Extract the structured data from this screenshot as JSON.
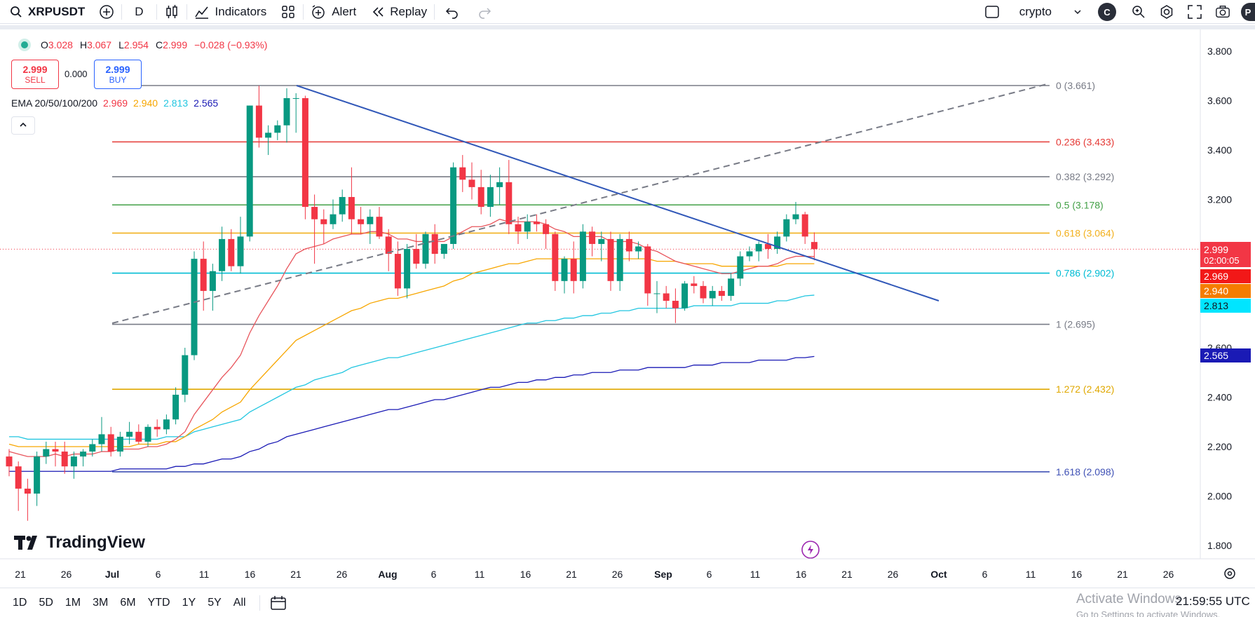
{
  "toolbar": {
    "symbol": "XRPUSDT",
    "interval": "D",
    "indicators_label": "Indicators",
    "alert_label": "Alert",
    "replay_label": "Replay",
    "layout_name": "crypto",
    "avatar_letter": "C",
    "edge_letter": "P"
  },
  "legend": {
    "o_label": "O",
    "o_value": "3.028",
    "h_label": "H",
    "h_value": "3.067",
    "l_label": "L",
    "l_value": "2.954",
    "c_label": "C",
    "c_value": "2.999",
    "change": "−0.028 (−0.93%)"
  },
  "trade": {
    "sell_price": "2.999",
    "sell_label": "SELL",
    "spread": "0.000",
    "buy_price": "2.999",
    "buy_label": "BUY"
  },
  "ema": {
    "label": "EMA 20/50/100/200",
    "v20": "2.969",
    "v50": "2.940",
    "v100": "2.813",
    "v200": "2.565",
    "c20": "#f23645",
    "c50": "#f7a600",
    "c100": "#22c6e0",
    "c200": "#1a1ab5"
  },
  "watermark": "TradingView",
  "chart_data": {
    "type": "candlestick",
    "y_ticks": [
      "3.800",
      "3.600",
      "3.400",
      "3.200",
      "2.600",
      "2.400",
      "2.200",
      "2.000",
      "1.800"
    ],
    "x_ticks": [
      "21",
      "26",
      "Jul",
      "6",
      "11",
      "16",
      "21",
      "26",
      "Aug",
      "6",
      "11",
      "16",
      "21",
      "26",
      "Sep",
      "6",
      "11",
      "16",
      "21",
      "26",
      "Oct",
      "6",
      "11",
      "16",
      "21",
      "26"
    ],
    "fib_levels": [
      {
        "label": "0 (3.661)",
        "value": 3.661,
        "color": "#787b86"
      },
      {
        "label": "0.236 (3.433)",
        "value": 3.433,
        "color": "#e53935"
      },
      {
        "label": "0.382 (3.292)",
        "value": 3.292,
        "color": "#787b86"
      },
      {
        "label": "0.5 (3.178)",
        "value": 3.178,
        "color": "#43a047"
      },
      {
        "label": "0.618 (3.064)",
        "value": 3.064,
        "color": "#f2b01e"
      },
      {
        "label": "0.786 (2.902)",
        "value": 2.902,
        "color": "#00bcd4"
      },
      {
        "label": "1 (2.695)",
        "value": 2.695,
        "color": "#787b86"
      },
      {
        "label": "1.272 (2.432)",
        "value": 2.432,
        "color": "#e0a800"
      },
      {
        "label": "1.618 (2.098)",
        "value": 2.098,
        "color": "#3f51b5"
      }
    ],
    "candles": [
      {
        "o": 2.16,
        "h": 2.19,
        "l": 2.08,
        "c": 2.12
      },
      {
        "o": 2.12,
        "h": 2.14,
        "l": 1.94,
        "c": 2.03
      },
      {
        "o": 2.03,
        "h": 2.07,
        "l": 1.9,
        "c": 2.01
      },
      {
        "o": 2.01,
        "h": 2.18,
        "l": 1.96,
        "c": 2.16
      },
      {
        "o": 2.16,
        "h": 2.22,
        "l": 2.13,
        "c": 2.19
      },
      {
        "o": 2.19,
        "h": 2.22,
        "l": 2.12,
        "c": 2.18
      },
      {
        "o": 2.18,
        "h": 2.22,
        "l": 2.09,
        "c": 2.12
      },
      {
        "o": 2.12,
        "h": 2.18,
        "l": 2.07,
        "c": 2.16
      },
      {
        "o": 2.16,
        "h": 2.19,
        "l": 2.12,
        "c": 2.18
      },
      {
        "o": 2.18,
        "h": 2.23,
        "l": 2.16,
        "c": 2.21
      },
      {
        "o": 2.21,
        "h": 2.32,
        "l": 2.18,
        "c": 2.25
      },
      {
        "o": 2.25,
        "h": 2.28,
        "l": 2.16,
        "c": 2.18
      },
      {
        "o": 2.18,
        "h": 2.26,
        "l": 2.16,
        "c": 2.24
      },
      {
        "o": 2.24,
        "h": 2.3,
        "l": 2.21,
        "c": 2.26
      },
      {
        "o": 2.26,
        "h": 2.29,
        "l": 2.21,
        "c": 2.22
      },
      {
        "o": 2.22,
        "h": 2.29,
        "l": 2.2,
        "c": 2.28
      },
      {
        "o": 2.28,
        "h": 2.31,
        "l": 2.24,
        "c": 2.27
      },
      {
        "o": 2.27,
        "h": 2.33,
        "l": 2.25,
        "c": 2.31
      },
      {
        "o": 2.31,
        "h": 2.44,
        "l": 2.29,
        "c": 2.41
      },
      {
        "o": 2.41,
        "h": 2.6,
        "l": 2.38,
        "c": 2.57
      },
      {
        "o": 2.57,
        "h": 2.99,
        "l": 2.55,
        "c": 2.96
      },
      {
        "o": 2.96,
        "h": 3.03,
        "l": 2.75,
        "c": 2.83
      },
      {
        "o": 2.83,
        "h": 2.94,
        "l": 2.75,
        "c": 2.91
      },
      {
        "o": 2.91,
        "h": 3.09,
        "l": 2.87,
        "c": 3.04
      },
      {
        "o": 3.04,
        "h": 3.08,
        "l": 2.91,
        "c": 2.93
      },
      {
        "o": 2.93,
        "h": 3.13,
        "l": 2.9,
        "c": 3.05
      },
      {
        "o": 3.05,
        "h": 3.58,
        "l": 3.03,
        "c": 3.58
      },
      {
        "o": 3.58,
        "h": 3.66,
        "l": 3.41,
        "c": 3.45
      },
      {
        "o": 3.45,
        "h": 3.5,
        "l": 3.38,
        "c": 3.47
      },
      {
        "o": 3.47,
        "h": 3.52,
        "l": 3.44,
        "c": 3.5
      },
      {
        "o": 3.5,
        "h": 3.65,
        "l": 3.43,
        "c": 3.61
      },
      {
        "o": 3.61,
        "h": 3.63,
        "l": 3.47,
        "c": 3.61
      },
      {
        "o": 3.61,
        "h": 3.62,
        "l": 3.12,
        "c": 3.17
      },
      {
        "o": 3.17,
        "h": 3.22,
        "l": 2.94,
        "c": 3.12
      },
      {
        "o": 3.12,
        "h": 3.16,
        "l": 3.02,
        "c": 3.1
      },
      {
        "o": 3.1,
        "h": 3.2,
        "l": 3.08,
        "c": 3.14
      },
      {
        "o": 3.14,
        "h": 3.24,
        "l": 3.11,
        "c": 3.21
      },
      {
        "o": 3.21,
        "h": 3.33,
        "l": 3.06,
        "c": 3.12
      },
      {
        "o": 3.12,
        "h": 3.17,
        "l": 3.06,
        "c": 3.1
      },
      {
        "o": 3.1,
        "h": 3.16,
        "l": 3.02,
        "c": 3.13
      },
      {
        "o": 3.13,
        "h": 3.17,
        "l": 3.04,
        "c": 3.05
      },
      {
        "o": 3.05,
        "h": 3.08,
        "l": 2.91,
        "c": 2.98
      },
      {
        "o": 2.98,
        "h": 3.03,
        "l": 2.81,
        "c": 2.84
      },
      {
        "o": 2.84,
        "h": 3.02,
        "l": 2.8,
        "c": 3.0
      },
      {
        "o": 3.0,
        "h": 3.06,
        "l": 2.92,
        "c": 2.94
      },
      {
        "o": 2.94,
        "h": 3.07,
        "l": 2.92,
        "c": 3.06
      },
      {
        "o": 3.06,
        "h": 3.1,
        "l": 2.94,
        "c": 2.98
      },
      {
        "o": 2.98,
        "h": 3.02,
        "l": 2.96,
        "c": 3.02
      },
      {
        "o": 3.02,
        "h": 3.35,
        "l": 3.0,
        "c": 3.33
      },
      {
        "o": 3.33,
        "h": 3.38,
        "l": 3.23,
        "c": 3.28
      },
      {
        "o": 3.28,
        "h": 3.35,
        "l": 3.2,
        "c": 3.25
      },
      {
        "o": 3.25,
        "h": 3.32,
        "l": 3.14,
        "c": 3.17
      },
      {
        "o": 3.17,
        "h": 3.3,
        "l": 3.13,
        "c": 3.25
      },
      {
        "o": 3.25,
        "h": 3.33,
        "l": 3.18,
        "c": 3.27
      },
      {
        "o": 3.27,
        "h": 3.36,
        "l": 3.06,
        "c": 3.1
      },
      {
        "o": 3.1,
        "h": 3.13,
        "l": 3.02,
        "c": 3.07
      },
      {
        "o": 3.07,
        "h": 3.14,
        "l": 3.04,
        "c": 3.11
      },
      {
        "o": 3.11,
        "h": 3.14,
        "l": 3.07,
        "c": 3.1
      },
      {
        "o": 3.1,
        "h": 3.12,
        "l": 3.0,
        "c": 3.06
      },
      {
        "o": 3.06,
        "h": 3.07,
        "l": 2.83,
        "c": 2.87
      },
      {
        "o": 2.87,
        "h": 2.97,
        "l": 2.82,
        "c": 2.96
      },
      {
        "o": 2.96,
        "h": 3.03,
        "l": 2.82,
        "c": 2.87
      },
      {
        "o": 2.87,
        "h": 3.1,
        "l": 2.84,
        "c": 3.07
      },
      {
        "o": 3.07,
        "h": 3.09,
        "l": 2.97,
        "c": 3.02
      },
      {
        "o": 3.02,
        "h": 3.07,
        "l": 2.95,
        "c": 3.04
      },
      {
        "o": 3.04,
        "h": 3.07,
        "l": 2.83,
        "c": 2.87
      },
      {
        "o": 2.87,
        "h": 3.06,
        "l": 2.83,
        "c": 3.04
      },
      {
        "o": 3.04,
        "h": 3.07,
        "l": 2.95,
        "c": 2.99
      },
      {
        "o": 2.99,
        "h": 3.03,
        "l": 2.96,
        "c": 3.01
      },
      {
        "o": 3.01,
        "h": 3.02,
        "l": 2.77,
        "c": 2.82
      },
      {
        "o": 2.82,
        "h": 2.87,
        "l": 2.74,
        "c": 2.82
      },
      {
        "o": 2.82,
        "h": 2.85,
        "l": 2.76,
        "c": 2.79
      },
      {
        "o": 2.79,
        "h": 2.84,
        "l": 2.7,
        "c": 2.76
      },
      {
        "o": 2.76,
        "h": 2.87,
        "l": 2.75,
        "c": 2.86
      },
      {
        "o": 2.86,
        "h": 2.89,
        "l": 2.82,
        "c": 2.85
      },
      {
        "o": 2.85,
        "h": 2.87,
        "l": 2.78,
        "c": 2.8
      },
      {
        "o": 2.8,
        "h": 2.85,
        "l": 2.77,
        "c": 2.83
      },
      {
        "o": 2.83,
        "h": 2.85,
        "l": 2.79,
        "c": 2.81
      },
      {
        "o": 2.81,
        "h": 2.9,
        "l": 2.79,
        "c": 2.88
      },
      {
        "o": 2.88,
        "h": 2.99,
        "l": 2.85,
        "c": 2.97
      },
      {
        "o": 2.97,
        "h": 3.01,
        "l": 2.95,
        "c": 2.99
      },
      {
        "o": 2.99,
        "h": 3.03,
        "l": 2.95,
        "c": 3.02
      },
      {
        "o": 3.02,
        "h": 3.06,
        "l": 2.96,
        "c": 3.0
      },
      {
        "o": 3.0,
        "h": 3.07,
        "l": 2.98,
        "c": 3.05
      },
      {
        "o": 3.05,
        "h": 3.14,
        "l": 3.03,
        "c": 3.12
      },
      {
        "o": 3.12,
        "h": 3.19,
        "l": 3.1,
        "c": 3.14
      },
      {
        "o": 3.14,
        "h": 3.15,
        "l": 3.02,
        "c": 3.05
      },
      {
        "o": 3.028,
        "h": 3.067,
        "l": 2.954,
        "c": 2.999
      }
    ],
    "ema20": [
      2.18,
      2.17,
      2.16,
      2.16,
      2.16,
      2.17,
      2.16,
      2.17,
      2.17,
      2.17,
      2.18,
      2.18,
      2.19,
      2.19,
      2.19,
      2.2,
      2.2,
      2.21,
      2.23,
      2.26,
      2.33,
      2.38,
      2.43,
      2.48,
      2.52,
      2.57,
      2.66,
      2.73,
      2.79,
      2.85,
      2.92,
      2.98,
      3.0,
      3.01,
      3.02,
      3.04,
      3.05,
      3.06,
      3.06,
      3.07,
      3.07,
      3.06,
      3.04,
      3.04,
      3.03,
      3.03,
      3.03,
      3.03,
      3.05,
      3.07,
      3.09,
      3.09,
      3.1,
      3.12,
      3.11,
      3.11,
      3.11,
      3.11,
      3.1,
      3.08,
      3.07,
      3.05,
      3.05,
      3.05,
      3.05,
      3.03,
      3.03,
      3.03,
      3.02,
      3.0,
      2.99,
      2.97,
      2.95,
      2.94,
      2.93,
      2.92,
      2.91,
      2.9,
      2.9,
      2.91,
      2.92,
      2.93,
      2.93,
      2.94,
      2.96,
      2.97,
      2.97,
      2.969
    ],
    "ema50": [
      2.21,
      2.2,
      2.2,
      2.2,
      2.2,
      2.2,
      2.2,
      2.2,
      2.2,
      2.2,
      2.2,
      2.2,
      2.2,
      2.2,
      2.21,
      2.21,
      2.21,
      2.22,
      2.22,
      2.24,
      2.27,
      2.29,
      2.31,
      2.34,
      2.36,
      2.38,
      2.43,
      2.47,
      2.51,
      2.55,
      2.59,
      2.63,
      2.65,
      2.67,
      2.69,
      2.71,
      2.73,
      2.75,
      2.76,
      2.78,
      2.79,
      2.8,
      2.8,
      2.81,
      2.82,
      2.83,
      2.84,
      2.85,
      2.87,
      2.88,
      2.9,
      2.91,
      2.92,
      2.93,
      2.94,
      2.94,
      2.95,
      2.96,
      2.96,
      2.96,
      2.96,
      2.96,
      2.96,
      2.96,
      2.96,
      2.96,
      2.96,
      2.96,
      2.96,
      2.96,
      2.95,
      2.95,
      2.95,
      2.94,
      2.94,
      2.94,
      2.94,
      2.93,
      2.93,
      2.93,
      2.93,
      2.93,
      2.93,
      2.93,
      2.94,
      2.94,
      2.94,
      2.94
    ],
    "ema100": [
      2.24,
      2.24,
      2.23,
      2.23,
      2.23,
      2.23,
      2.23,
      2.23,
      2.23,
      2.23,
      2.23,
      2.23,
      2.23,
      2.23,
      2.23,
      2.23,
      2.23,
      2.24,
      2.24,
      2.24,
      2.26,
      2.27,
      2.28,
      2.29,
      2.3,
      2.31,
      2.34,
      2.36,
      2.38,
      2.4,
      2.42,
      2.44,
      2.45,
      2.47,
      2.48,
      2.49,
      2.5,
      2.52,
      2.53,
      2.54,
      2.55,
      2.56,
      2.56,
      2.57,
      2.58,
      2.59,
      2.6,
      2.61,
      2.62,
      2.63,
      2.64,
      2.65,
      2.66,
      2.67,
      2.68,
      2.69,
      2.7,
      2.7,
      2.71,
      2.71,
      2.72,
      2.72,
      2.73,
      2.73,
      2.74,
      2.74,
      2.75,
      2.75,
      2.76,
      2.76,
      2.76,
      2.76,
      2.76,
      2.76,
      2.77,
      2.77,
      2.77,
      2.77,
      2.77,
      2.78,
      2.78,
      2.78,
      2.78,
      2.79,
      2.79,
      2.8,
      2.81,
      2.813
    ],
    "ema200": [
      2.1,
      2.1,
      2.1,
      2.1,
      2.1,
      2.1,
      2.1,
      2.1,
      2.1,
      2.1,
      2.1,
      2.1,
      2.11,
      2.11,
      2.11,
      2.11,
      2.11,
      2.11,
      2.12,
      2.12,
      2.13,
      2.13,
      2.14,
      2.15,
      2.15,
      2.16,
      2.18,
      2.19,
      2.21,
      2.22,
      2.24,
      2.25,
      2.26,
      2.27,
      2.28,
      2.29,
      2.3,
      2.31,
      2.32,
      2.33,
      2.34,
      2.35,
      2.35,
      2.36,
      2.37,
      2.38,
      2.39,
      2.39,
      2.4,
      2.41,
      2.42,
      2.43,
      2.44,
      2.44,
      2.45,
      2.46,
      2.46,
      2.47,
      2.47,
      2.48,
      2.48,
      2.49,
      2.49,
      2.5,
      2.5,
      2.5,
      2.51,
      2.51,
      2.51,
      2.52,
      2.52,
      2.52,
      2.52,
      2.52,
      2.53,
      2.53,
      2.53,
      2.54,
      2.54,
      2.54,
      2.54,
      2.55,
      2.55,
      2.55,
      2.55,
      2.56,
      2.56,
      2.565
    ],
    "price_tags": [
      {
        "text": "2.999",
        "sub": "02:00:05",
        "bg": "#f23645"
      },
      {
        "text": "2.969",
        "bg": "#f21818"
      },
      {
        "text": "2.940",
        "bg": "#f57c00"
      },
      {
        "text": "2.813",
        "bg": "#00e5ff",
        "fg": "#131722"
      },
      {
        "text": "2.565",
        "bg": "#1a1ab5"
      }
    ]
  },
  "bottom": {
    "ranges": [
      "1D",
      "5D",
      "1M",
      "3M",
      "6M",
      "YTD",
      "1Y",
      "5Y",
      "All"
    ],
    "activate_title": "Activate Windows",
    "activate_sub": "Go to Settings to activate Windows.",
    "clock": "21:59:55 UTC"
  }
}
